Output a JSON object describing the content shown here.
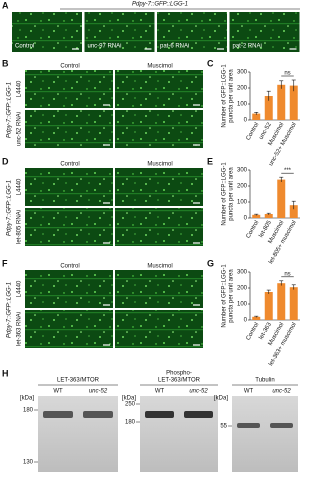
{
  "labels": [
    "A",
    "B",
    "C",
    "D",
    "E",
    "F",
    "G",
    "H"
  ],
  "panel_a": {
    "title": "Pdpy-7::GFP::LGG-1",
    "images": [
      "Control",
      "unc-97 RNAi",
      "pat-6 RNAi",
      "pat-2 RNAi"
    ]
  },
  "image_panels": [
    {
      "columns": [
        "Control",
        "Muscimol"
      ],
      "construct": "Pdpy-7::GFP::LGG-1",
      "rows": [
        "L4440",
        "unc-52 RNAi"
      ]
    },
    {
      "columns": [
        "Control",
        "Muscimol"
      ],
      "construct": "Pdpy-7::GFP::LGG-1",
      "rows": [
        "L4440",
        "let-805 RNAi"
      ]
    },
    {
      "columns": [
        "Control",
        "Muscimol"
      ],
      "construct": "Pdpy-7::GFP::LGG-1",
      "rows": [
        "L4440",
        "let-363 RNAi"
      ]
    }
  ],
  "chart_data": [
    {
      "type": "bar",
      "y_label": [
        "Number of GFP::LGG-1",
        "puncta per unit area"
      ],
      "categories": [
        "Control",
        "unc-52",
        "Muscimol",
        "unc-52+ Muscimol"
      ],
      "values": [
        40,
        150,
        220,
        215
      ],
      "errors": [
        8,
        30,
        25,
        35
      ],
      "color": "#ef8a2e",
      "ylim": [
        0,
        300
      ],
      "yticks": [
        0,
        100,
        200,
        300
      ],
      "annotation": "ns"
    },
    {
      "type": "bar",
      "y_label": [
        "Number of GFP::LGG-1",
        "puncta per unit area"
      ],
      "categories": [
        "Control",
        "let-805",
        "Muscimol",
        "let-805+ muscimol"
      ],
      "values": [
        20,
        25,
        240,
        80
      ],
      "errors": [
        4,
        5,
        15,
        25
      ],
      "color": "#ef8a2e",
      "ylim": [
        0,
        300
      ],
      "yticks": [
        0,
        100,
        200,
        300
      ],
      "annotation": "***"
    },
    {
      "type": "bar",
      "y_label": [
        "Number of GFP::LGG-1",
        "puncta per unit area"
      ],
      "categories": [
        "Control",
        "let-363",
        "Muscimol",
        "let-363+ muscimol"
      ],
      "values": [
        20,
        175,
        230,
        205
      ],
      "errors": [
        4,
        12,
        15,
        15
      ],
      "color": "#ef8a2e",
      "ylim": [
        0,
        300
      ],
      "yticks": [
        0,
        100,
        200,
        300
      ],
      "annotation": "ns"
    }
  ],
  "panel_h": {
    "unit": "[kDa]",
    "blots": [
      {
        "title": [
          "LET-363/MTOR"
        ],
        "lanes": [
          "WT",
          "unc-52"
        ],
        "markers": [
          180,
          130
        ]
      },
      {
        "title": [
          "Phospho-",
          "LET-363/MTOR"
        ],
        "lanes": [
          "WT",
          "unc-52"
        ],
        "markers": [
          250,
          180
        ]
      },
      {
        "title": [
          "Tubulin"
        ],
        "lanes": [
          "WT",
          "unc-52"
        ],
        "markers": [
          55
        ]
      }
    ]
  }
}
